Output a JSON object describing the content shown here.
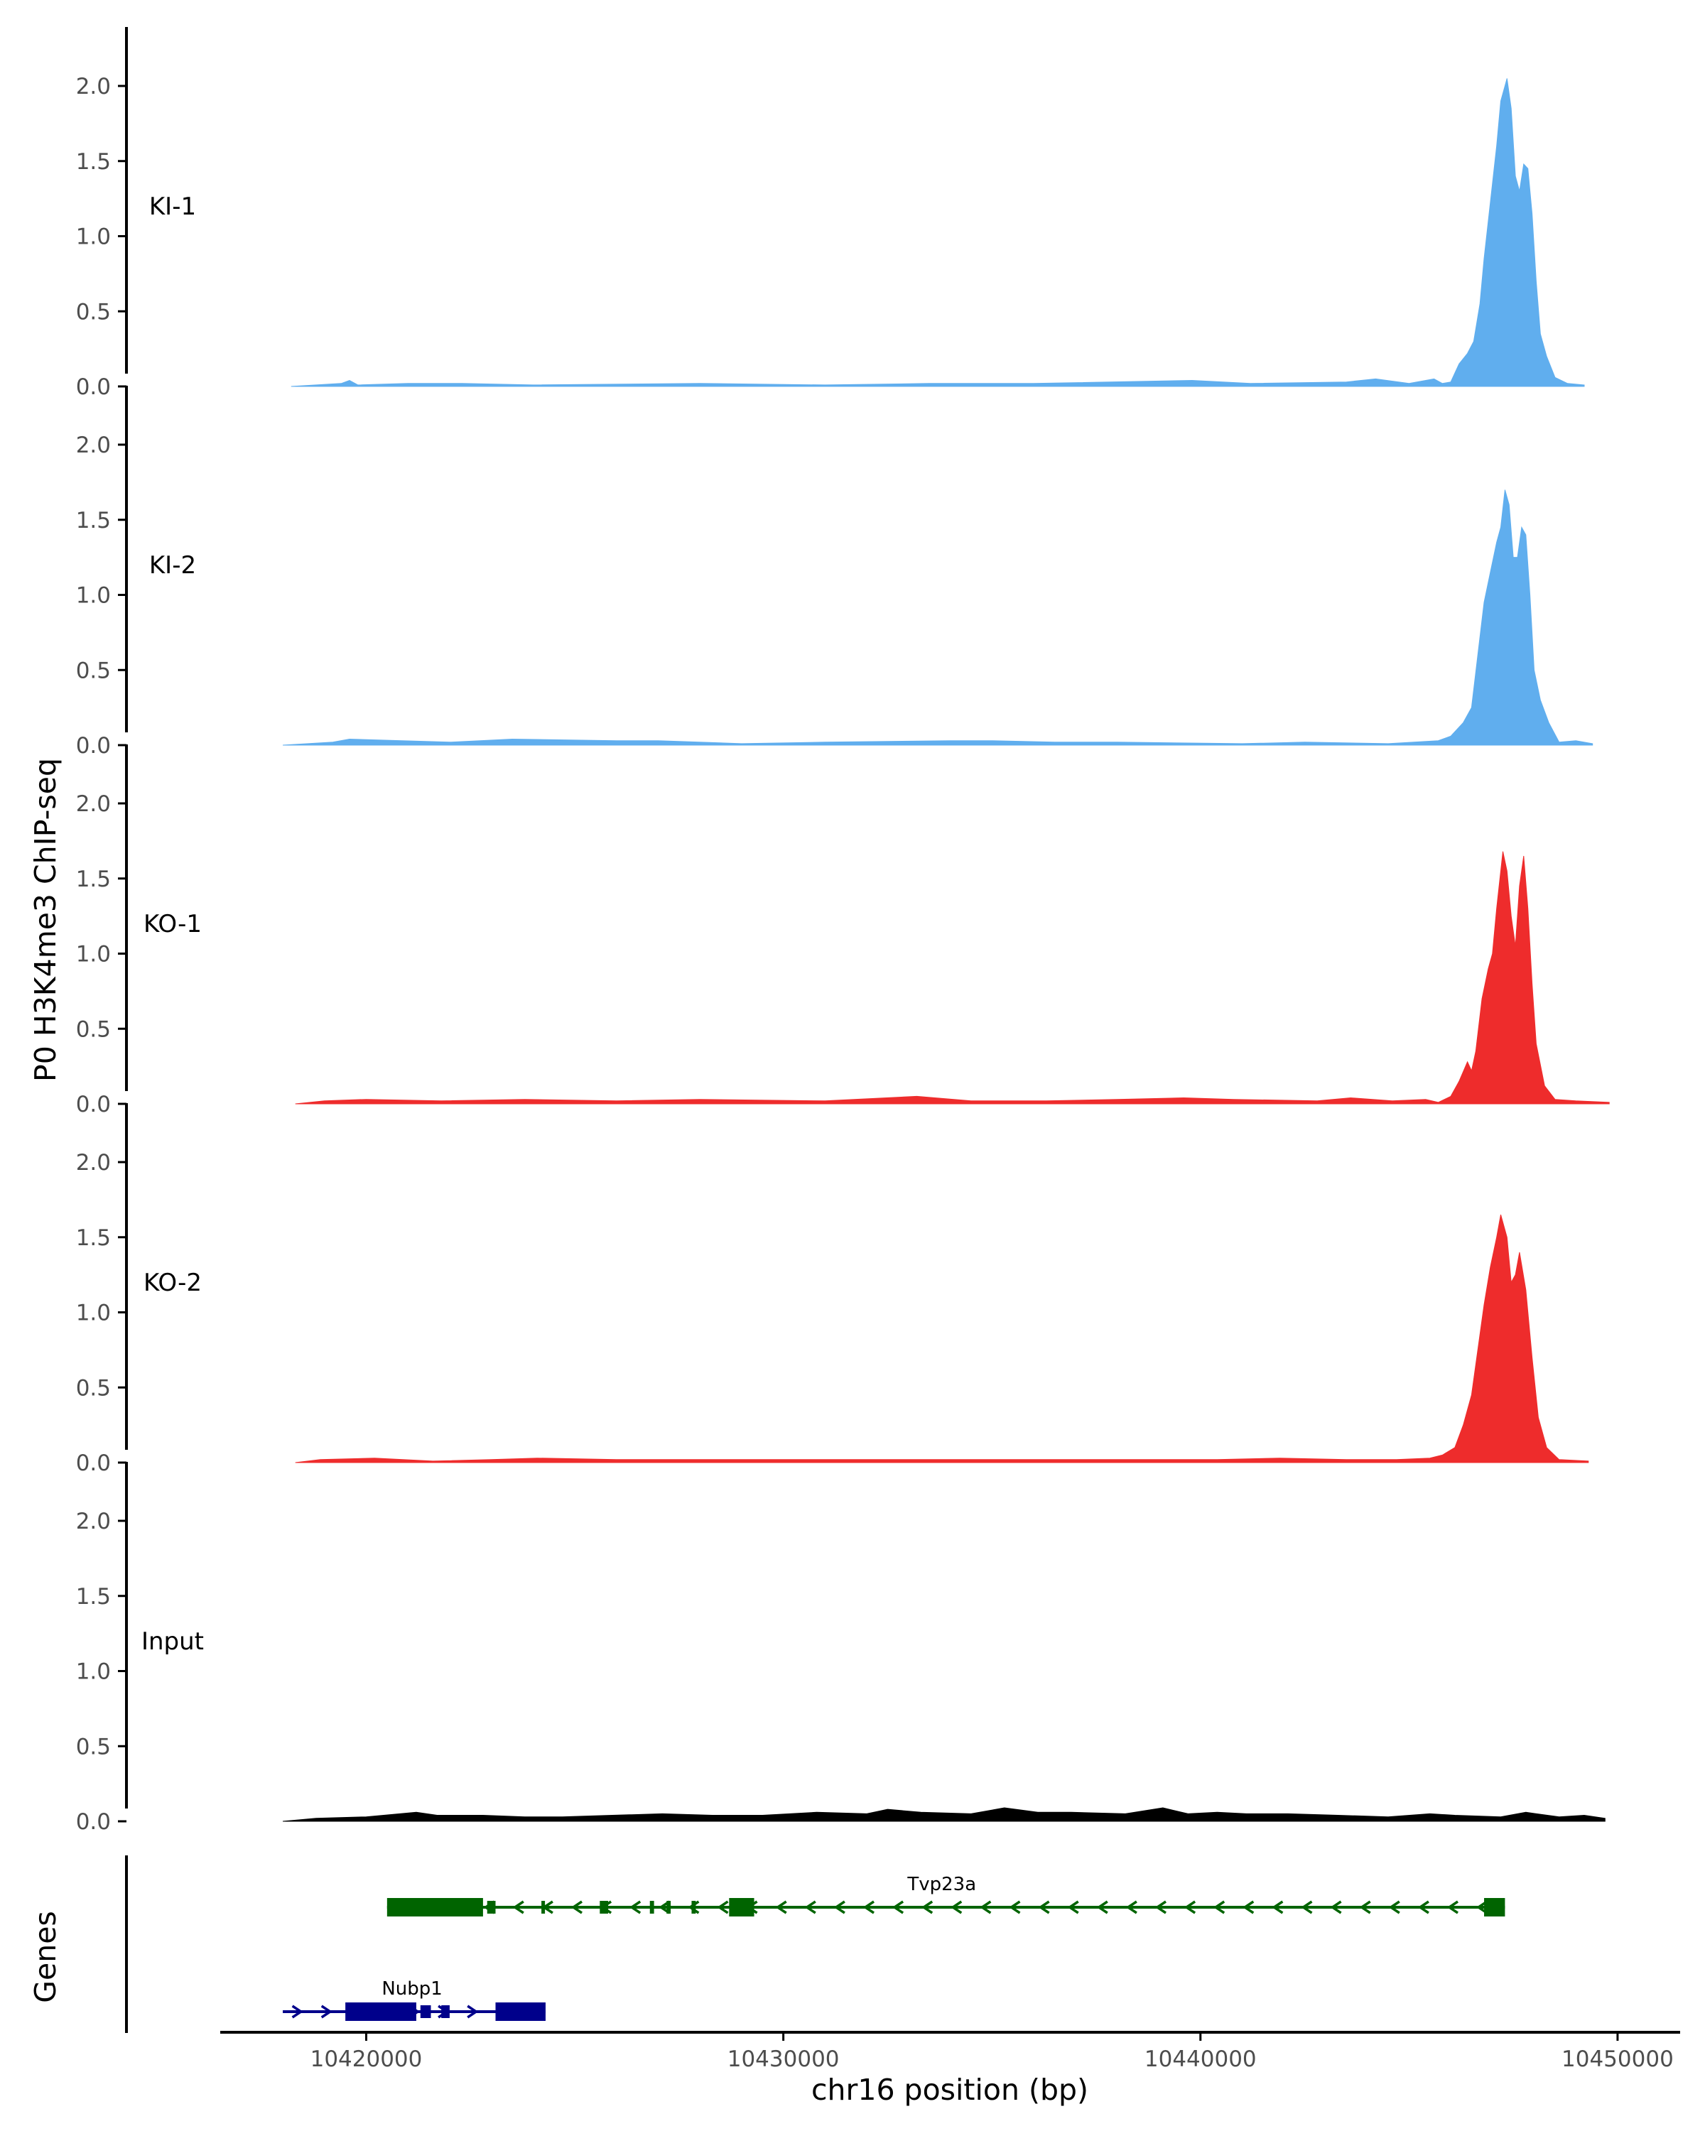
{
  "chart_data": {
    "type": "area",
    "ylabel": "P0 H3K4me3 ChIP-seq",
    "xlabel": "chr16 position (bp)",
    "genes_label": "Genes",
    "xlim": [
      10416500,
      10451500
    ],
    "ylim": [
      0,
      2.2
    ],
    "yticks": [
      0.0,
      0.5,
      1.0,
      1.5,
      2.0
    ],
    "ytick_labels": [
      "0.0",
      "0.5",
      "1.0",
      "1.5",
      "2.0"
    ],
    "xticks": [
      10420000,
      10430000,
      10440000,
      10450000
    ],
    "xtick_labels": [
      "10420000",
      "10430000",
      "10440000",
      "10450000"
    ],
    "tracks": [
      {
        "name": "KI-1",
        "color": "#60AEEE",
        "points": [
          [
            10418200,
            0
          ],
          [
            10419400,
            0.02
          ],
          [
            10419600,
            0.04
          ],
          [
            10419800,
            0.01
          ],
          [
            10421000,
            0.02
          ],
          [
            10422300,
            0.02
          ],
          [
            10424000,
            0.01
          ],
          [
            10428000,
            0.02
          ],
          [
            10431000,
            0.01
          ],
          [
            10433500,
            0.02
          ],
          [
            10436000,
            0.02
          ],
          [
            10439800,
            0.04
          ],
          [
            10441200,
            0.02
          ],
          [
            10443500,
            0.03
          ],
          [
            10444200,
            0.05
          ],
          [
            10445000,
            0.02
          ],
          [
            10445600,
            0.05
          ],
          [
            10445800,
            0.02
          ],
          [
            10446000,
            0.03
          ],
          [
            10446200,
            0.15
          ],
          [
            10446400,
            0.22
          ],
          [
            10446550,
            0.3
          ],
          [
            10446700,
            0.55
          ],
          [
            10446800,
            0.85
          ],
          [
            10446900,
            1.1
          ],
          [
            10447000,
            1.35
          ],
          [
            10447100,
            1.6
          ],
          [
            10447200,
            1.9
          ],
          [
            10447300,
            2.0
          ],
          [
            10447350,
            2.05
          ],
          [
            10447450,
            1.85
          ],
          [
            10447550,
            1.4
          ],
          [
            10447650,
            1.3
          ],
          [
            10447750,
            1.48
          ],
          [
            10447850,
            1.45
          ],
          [
            10447950,
            1.15
          ],
          [
            10448050,
            0.7
          ],
          [
            10448150,
            0.35
          ],
          [
            10448300,
            0.2
          ],
          [
            10448500,
            0.06
          ],
          [
            10448800,
            0.02
          ],
          [
            10449200,
            0.01
          ]
        ]
      },
      {
        "name": "KI-2",
        "color": "#60AEEE",
        "points": [
          [
            10418000,
            0
          ],
          [
            10419200,
            0.02
          ],
          [
            10419600,
            0.04
          ],
          [
            10422000,
            0.02
          ],
          [
            10423500,
            0.04
          ],
          [
            10426000,
            0.03
          ],
          [
            10427000,
            0.03
          ],
          [
            10429000,
            0.01
          ],
          [
            10431000,
            0.02
          ],
          [
            10434000,
            0.03
          ],
          [
            10435000,
            0.03
          ],
          [
            10436500,
            0.02
          ],
          [
            10438000,
            0.02
          ],
          [
            10441000,
            0.01
          ],
          [
            10442500,
            0.02
          ],
          [
            10444500,
            0.01
          ],
          [
            10445700,
            0.03
          ],
          [
            10446000,
            0.06
          ],
          [
            10446300,
            0.15
          ],
          [
            10446500,
            0.25
          ],
          [
            10446650,
            0.6
          ],
          [
            10446800,
            0.95
          ],
          [
            10446950,
            1.15
          ],
          [
            10447100,
            1.35
          ],
          [
            10447200,
            1.45
          ],
          [
            10447300,
            1.7
          ],
          [
            10447400,
            1.6
          ],
          [
            10447500,
            1.25
          ],
          [
            10447600,
            1.25
          ],
          [
            10447700,
            1.45
          ],
          [
            10447800,
            1.4
          ],
          [
            10447900,
            1.0
          ],
          [
            10448000,
            0.5
          ],
          [
            10448150,
            0.3
          ],
          [
            10448350,
            0.15
          ],
          [
            10448600,
            0.02
          ],
          [
            10449000,
            0.03
          ],
          [
            10449400,
            0.01
          ]
        ]
      },
      {
        "name": "KO-1",
        "color": "#EE2C2C",
        "points": [
          [
            10418300,
            0
          ],
          [
            10419000,
            0.02
          ],
          [
            10420000,
            0.03
          ],
          [
            10421800,
            0.02
          ],
          [
            10423800,
            0.03
          ],
          [
            10426000,
            0.02
          ],
          [
            10428000,
            0.03
          ],
          [
            10431000,
            0.02
          ],
          [
            10433200,
            0.05
          ],
          [
            10434500,
            0.02
          ],
          [
            10436300,
            0.02
          ],
          [
            10438000,
            0.03
          ],
          [
            10439600,
            0.04
          ],
          [
            10440800,
            0.03
          ],
          [
            10442800,
            0.02
          ],
          [
            10443600,
            0.04
          ],
          [
            10444600,
            0.02
          ],
          [
            10445400,
            0.03
          ],
          [
            10445700,
            0.01
          ],
          [
            10446000,
            0.05
          ],
          [
            10446200,
            0.15
          ],
          [
            10446400,
            0.28
          ],
          [
            10446500,
            0.22
          ],
          [
            10446600,
            0.35
          ],
          [
            10446750,
            0.7
          ],
          [
            10446900,
            0.9
          ],
          [
            10447000,
            1.0
          ],
          [
            10447100,
            1.3
          ],
          [
            10447250,
            1.68
          ],
          [
            10447350,
            1.55
          ],
          [
            10447450,
            1.25
          ],
          [
            10447550,
            1.05
          ],
          [
            10447650,
            1.45
          ],
          [
            10447750,
            1.65
          ],
          [
            10447850,
            1.3
          ],
          [
            10447950,
            0.8
          ],
          [
            10448050,
            0.4
          ],
          [
            10448250,
            0.12
          ],
          [
            10448500,
            0.03
          ],
          [
            10449000,
            0.02
          ],
          [
            10449800,
            0.01
          ]
        ]
      },
      {
        "name": "KO-2",
        "color": "#EE2C2C",
        "points": [
          [
            10418300,
            0
          ],
          [
            10418900,
            0.02
          ],
          [
            10420200,
            0.03
          ],
          [
            10421600,
            0.01
          ],
          [
            10423000,
            0.02
          ],
          [
            10424100,
            0.03
          ],
          [
            10426000,
            0.02
          ],
          [
            10428000,
            0.02
          ],
          [
            10430000,
            0.02
          ],
          [
            10432000,
            0.02
          ],
          [
            10434000,
            0.02
          ],
          [
            10436500,
            0.02
          ],
          [
            10438600,
            0.02
          ],
          [
            10440400,
            0.02
          ],
          [
            10441900,
            0.03
          ],
          [
            10443500,
            0.02
          ],
          [
            10444700,
            0.02
          ],
          [
            10445500,
            0.03
          ],
          [
            10445800,
            0.05
          ],
          [
            10446100,
            0.1
          ],
          [
            10446300,
            0.25
          ],
          [
            10446500,
            0.45
          ],
          [
            10446650,
            0.75
          ],
          [
            10446800,
            1.05
          ],
          [
            10446950,
            1.3
          ],
          [
            10447100,
            1.5
          ],
          [
            10447200,
            1.65
          ],
          [
            10447350,
            1.5
          ],
          [
            10447450,
            1.2
          ],
          [
            10447550,
            1.25
          ],
          [
            10447650,
            1.4
          ],
          [
            10447800,
            1.15
          ],
          [
            10447950,
            0.7
          ],
          [
            10448100,
            0.3
          ],
          [
            10448300,
            0.1
          ],
          [
            10448600,
            0.02
          ],
          [
            10449300,
            0.01
          ]
        ]
      },
      {
        "name": "Input",
        "color": "#000000",
        "points": [
          [
            10418000,
            0
          ],
          [
            10418800,
            0.02
          ],
          [
            10420000,
            0.03
          ],
          [
            10421200,
            0.06
          ],
          [
            10421700,
            0.04
          ],
          [
            10422800,
            0.04
          ],
          [
            10423800,
            0.03
          ],
          [
            10424700,
            0.03
          ],
          [
            10425900,
            0.04
          ],
          [
            10427100,
            0.05
          ],
          [
            10428300,
            0.04
          ],
          [
            10429500,
            0.04
          ],
          [
            10430800,
            0.06
          ],
          [
            10432000,
            0.05
          ],
          [
            10432500,
            0.08
          ],
          [
            10433300,
            0.06
          ],
          [
            10434500,
            0.05
          ],
          [
            10435300,
            0.09
          ],
          [
            10436100,
            0.06
          ],
          [
            10436900,
            0.06
          ],
          [
            10438200,
            0.05
          ],
          [
            10439100,
            0.09
          ],
          [
            10439700,
            0.05
          ],
          [
            10440400,
            0.06
          ],
          [
            10441100,
            0.05
          ],
          [
            10442100,
            0.05
          ],
          [
            10443300,
            0.04
          ],
          [
            10444500,
            0.03
          ],
          [
            10445500,
            0.05
          ],
          [
            10446100,
            0.04
          ],
          [
            10447200,
            0.03
          ],
          [
            10447800,
            0.06
          ],
          [
            10448600,
            0.03
          ],
          [
            10449200,
            0.04
          ],
          [
            10449700,
            0.02
          ]
        ]
      }
    ],
    "genes": [
      {
        "name": "Tvp23a",
        "strand": "-",
        "color": "#006400",
        "start": 10420500,
        "end": 10447300,
        "exons": [
          [
            10420500,
            10422800,
            "thick"
          ],
          [
            10422900,
            10423100,
            "thin"
          ],
          [
            10424200,
            10424250,
            "thin"
          ],
          [
            10425600,
            10425800,
            "thin"
          ],
          [
            10426800,
            10426900,
            "thin"
          ],
          [
            10427200,
            10427300,
            "thin"
          ],
          [
            10427800,
            10427900,
            "thin"
          ],
          [
            10428700,
            10429300,
            "thick"
          ],
          [
            10446800,
            10447300,
            "thick"
          ]
        ]
      },
      {
        "name": "Nubp1",
        "strand": "+",
        "color": "#00008B",
        "start": 10418000,
        "end": 10424300,
        "exons": [
          [
            10419500,
            10421200,
            "thick"
          ],
          [
            10421300,
            10421550,
            "thin"
          ],
          [
            10421800,
            10422000,
            "thin"
          ],
          [
            10423100,
            10424300,
            "thick"
          ]
        ]
      }
    ]
  }
}
